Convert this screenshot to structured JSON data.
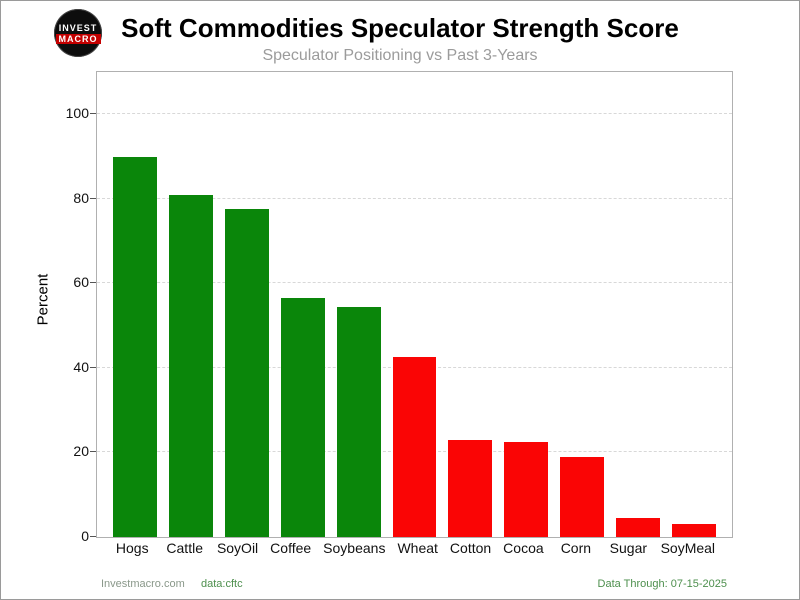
{
  "header": {
    "logo_line1": "INVEST",
    "logo_line2": "MACRO"
  },
  "chart_data": {
    "type": "bar",
    "title": "Soft Commodities Speculator Strength Score",
    "subtitle": "Speculator Positioning vs Past 3-Years",
    "ylabel": "Percent",
    "xlabel": "",
    "categories": [
      "Hogs",
      "Cattle",
      "SoyOil",
      "Coffee",
      "Soybeans",
      "Wheat",
      "Cotton",
      "Cocoa",
      "Corn",
      "Sugar",
      "SoyMeal"
    ],
    "values": [
      90,
      81,
      77.5,
      56.5,
      54.5,
      42.5,
      23,
      22.5,
      19,
      4.5,
      3
    ],
    "bar_colors": [
      "green",
      "green",
      "green",
      "green",
      "green",
      "red",
      "red",
      "red",
      "red",
      "red",
      "red"
    ],
    "yticks": [
      0,
      20,
      40,
      60,
      80,
      100
    ],
    "ylim": [
      0,
      110
    ],
    "grid": "horizontal-dashed",
    "legend": "none"
  },
  "colors": {
    "green": "#0a860a",
    "red": "#fa0505",
    "grid": "#d8d8d8"
  },
  "footer": {
    "site": "Investmacro.com",
    "source": "data:cftc",
    "data_through": "Data Through: 07-15-2025"
  }
}
